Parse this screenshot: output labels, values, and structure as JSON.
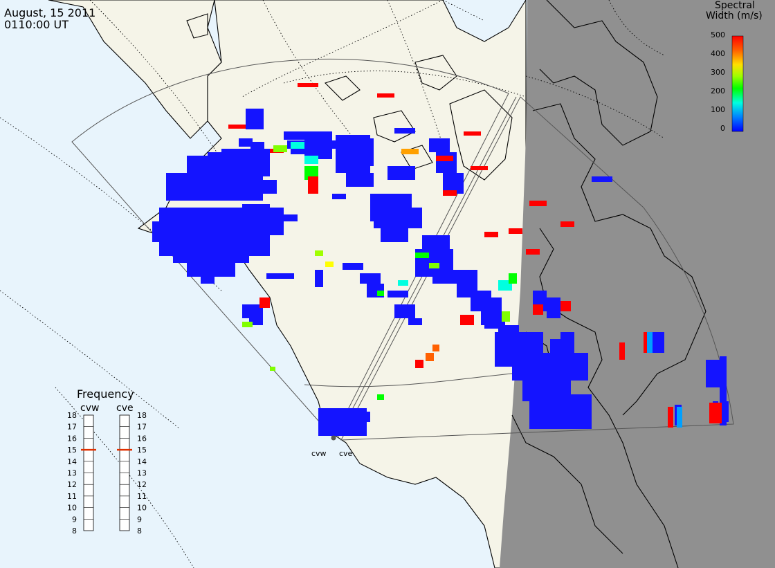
{
  "header": {
    "date": "August, 15 2011",
    "time": "0110:00 UT"
  },
  "colorbar": {
    "title_line1": "Spectral",
    "title_line2": "Width (m/s)",
    "ticks": [
      "500",
      "400",
      "300",
      "200",
      "100",
      "0"
    ],
    "colors": [
      "#0000ff",
      "#00a0ff",
      "#00ffd0",
      "#00ff00",
      "#a0ff00",
      "#ffff00",
      "#ffa000",
      "#ff4000",
      "#ff0000"
    ]
  },
  "radars": {
    "left_name": "cvw",
    "right_name": "cve"
  },
  "frequency_panel": {
    "title": "Frequency",
    "col_left": "cvw",
    "col_right": "cve",
    "scale": [
      "18",
      "17",
      "16",
      "15",
      "14",
      "13",
      "12",
      "11",
      "10",
      "9",
      "8"
    ],
    "cvw_value": 15,
    "cve_value": 15,
    "marker_color": "#e03000"
  },
  "map_colors": {
    "ocean": "#e8f4fc",
    "land": "#f5f4e8",
    "night": "#909090",
    "coast": "#000000"
  }
}
